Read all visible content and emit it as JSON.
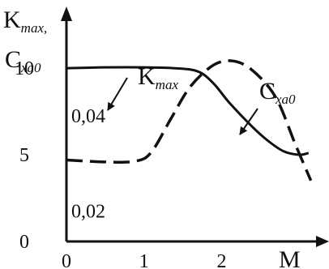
{
  "chart_data": {
    "type": "line",
    "title": "",
    "xlabel": "M",
    "ylabel": {
      "line1_main": "K",
      "line1_sub": "max,",
      "line2_main": "C",
      "line2_sub": "xa0"
    },
    "xlim": [
      0,
      3.3
    ],
    "ylim": [
      0,
      13
    ],
    "x_ticks": [
      "0",
      "1",
      "2"
    ],
    "y_ticks": [
      "0",
      "5",
      "10"
    ],
    "right_axis_ticks": [
      "0,04",
      "0,02"
    ],
    "grid": false,
    "series": [
      {
        "name": "K",
        "name_sub": "max",
        "style": "solid",
        "axis": "left",
        "x": [
          0,
          0.5,
          1.0,
          1.4,
          1.7,
          1.9,
          2.1,
          2.4,
          2.6,
          2.8,
          3.0,
          3.12
        ],
        "y": [
          10,
          10.05,
          10.05,
          10.0,
          9.8,
          9.1,
          8.0,
          6.6,
          5.8,
          5.2,
          5.0,
          5.1
        ]
      },
      {
        "name": "C",
        "name_sub": "xa0",
        "style": "dashed",
        "axis": "right",
        "x": [
          0,
          0.5,
          0.9,
          1.1,
          1.35,
          1.6,
          1.9,
          2.15,
          2.4,
          2.7,
          2.95,
          3.15
        ],
        "y": [
          0.0307,
          0.0303,
          0.0305,
          0.0325,
          0.0395,
          0.0462,
          0.0507,
          0.0515,
          0.0495,
          0.0438,
          0.034,
          0.0264
        ]
      }
    ],
    "right_axis_scale": {
      "y_at_left_0": 0.0136,
      "per_left_unit": 0.00364
    },
    "annotations": [
      {
        "text_main": "K",
        "text_sub": "max",
        "points_to_series": 0
      },
      {
        "text_main": "C",
        "text_sub": "xa0",
        "points_to_series": 1
      }
    ]
  }
}
